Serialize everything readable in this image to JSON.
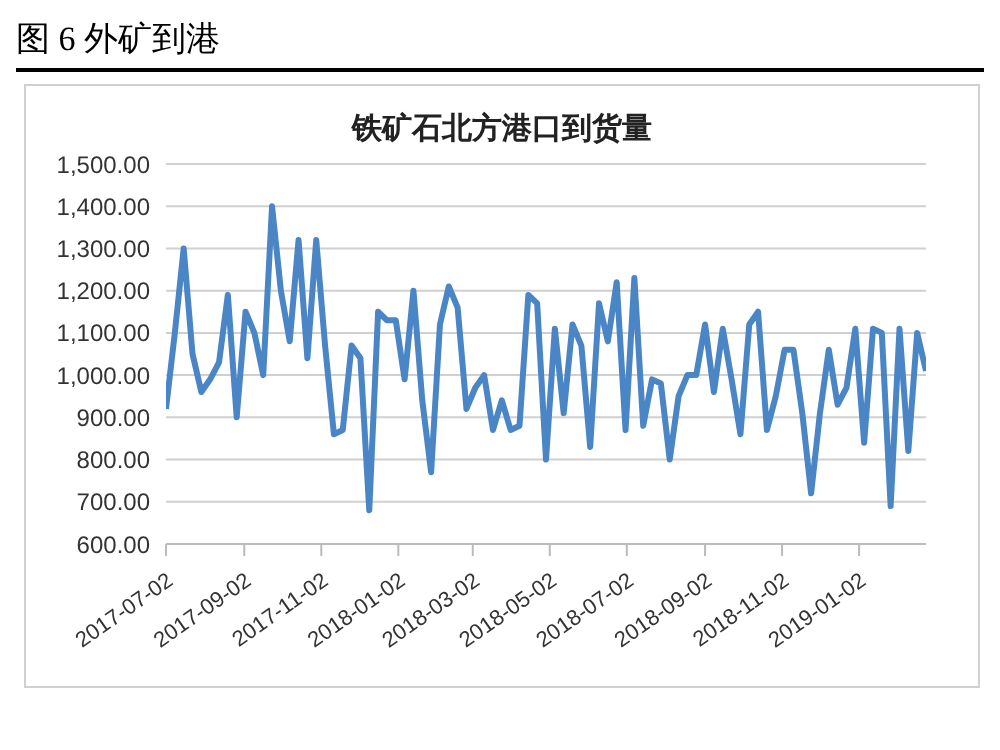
{
  "chart_data": {
    "type": "line",
    "title": "图 6 外矿到港",
    "subtitle": "铁矿石北方港口到货量",
    "x": [
      "2017-07-02",
      "2017-07-09",
      "2017-07-16",
      "2017-07-23",
      "2017-07-30",
      "2017-08-06",
      "2017-08-13",
      "2017-08-20",
      "2017-08-27",
      "2017-09-03",
      "2017-09-10",
      "2017-09-17",
      "2017-09-24",
      "2017-10-01",
      "2017-10-08",
      "2017-10-15",
      "2017-10-22",
      "2017-10-29",
      "2017-11-05",
      "2017-11-12",
      "2017-11-19",
      "2017-11-26",
      "2017-12-03",
      "2017-12-10",
      "2017-12-17",
      "2017-12-24",
      "2017-12-31",
      "2018-01-07",
      "2018-01-14",
      "2018-01-21",
      "2018-01-28",
      "2018-02-04",
      "2018-02-11",
      "2018-02-18",
      "2018-02-25",
      "2018-03-04",
      "2018-03-11",
      "2018-03-18",
      "2018-03-25",
      "2018-04-01",
      "2018-04-08",
      "2018-04-15",
      "2018-04-22",
      "2018-04-29",
      "2018-05-06",
      "2018-05-13",
      "2018-05-20",
      "2018-05-27",
      "2018-06-03",
      "2018-06-10",
      "2018-06-17",
      "2018-06-24",
      "2018-07-01",
      "2018-07-08",
      "2018-07-15",
      "2018-07-22",
      "2018-07-29",
      "2018-08-05",
      "2018-08-12",
      "2018-08-19",
      "2018-08-26",
      "2018-09-02",
      "2018-09-09",
      "2018-09-16",
      "2018-09-23",
      "2018-09-30",
      "2018-10-07",
      "2018-10-14",
      "2018-10-21",
      "2018-10-28",
      "2018-11-04",
      "2018-11-11",
      "2018-11-18",
      "2018-11-25",
      "2018-12-02",
      "2018-12-09",
      "2018-12-16",
      "2018-12-23",
      "2018-12-30",
      "2019-01-06",
      "2019-01-13",
      "2019-01-20",
      "2019-01-27",
      "2019-02-03",
      "2019-02-10",
      "2019-02-17",
      "2019-02-24"
    ],
    "series": [
      {
        "color": "#4a86c5",
        "values": [
          920,
          1100,
          1300,
          1050,
          960,
          990,
          1030,
          1190,
          900,
          1150,
          1100,
          1000,
          1400,
          1200,
          1080,
          1320,
          1040,
          1320,
          1070,
          860,
          870,
          1070,
          1040,
          680,
          1150,
          1130,
          1130,
          990,
          1200,
          940,
          770,
          1120,
          1210,
          1160,
          920,
          970,
          1000,
          870,
          940,
          870,
          880,
          1190,
          1170,
          800,
          1110,
          910,
          1120,
          1070,
          830,
          1170,
          1080,
          1220,
          870,
          1230,
          880,
          990,
          980,
          800,
          950,
          1000,
          1000,
          1120,
          960,
          1110,
          990,
          860,
          1120,
          1150,
          870,
          950,
          1060,
          1060,
          910,
          720,
          910,
          1060,
          930,
          970,
          1110,
          840,
          1110,
          1100,
          690,
          1110,
          820,
          1100,
          1010
        ]
      }
    ],
    "xlim": [
      "2017-07-02",
      "2019-02-24"
    ],
    "xticks": [
      "2017-07-02",
      "2017-09-02",
      "2017-11-02",
      "2018-01-02",
      "2018-03-02",
      "2018-05-02",
      "2018-07-02",
      "2018-09-02",
      "2018-11-02",
      "2019-01-02"
    ],
    "ylim": [
      600,
      1500
    ],
    "yticks": [
      {
        "value": 600,
        "label": "600.00"
      },
      {
        "value": 700,
        "label": "700.00"
      },
      {
        "value": 800,
        "label": "800.00"
      },
      {
        "value": 900,
        "label": "900.00"
      },
      {
        "value": 1000,
        "label": "1,000.00"
      },
      {
        "value": 1100,
        "label": "1,100.00"
      },
      {
        "value": 1200,
        "label": "1,200.00"
      },
      {
        "value": 1300,
        "label": "1,300.00"
      },
      {
        "value": 1400,
        "label": "1,400.00"
      },
      {
        "value": 1500,
        "label": "1,500.00"
      }
    ],
    "grid": "y",
    "legend": false,
    "marker": "none",
    "line_style": "solid"
  }
}
